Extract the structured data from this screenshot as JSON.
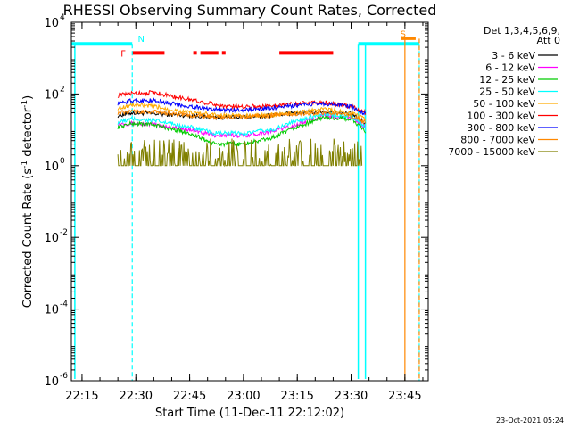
{
  "chart_data": {
    "type": "line",
    "title": "RHESSI Observing Summary Count Rates, Corrected",
    "xlabel": "Start Time (11-Dec-11 22:12:02)",
    "ylabel": "Corrected Count Rate (s",
    "ylabel_sup": "-1",
    "ylabel_mid": " detector",
    "ylabel_end": ")",
    "y_scale": "log",
    "ylim": [
      1e-06,
      10000.0
    ],
    "xlim": [
      "22:12:02",
      "23:51:30"
    ],
    "x_ticks": [
      {
        "time": "22:15",
        "label": "22:15"
      },
      {
        "time": "22:30",
        "label": "22:30"
      },
      {
        "time": "22:45",
        "label": "22:45"
      },
      {
        "time": "23:00",
        "label": "23:00"
      },
      {
        "time": "23:15",
        "label": "23:15"
      },
      {
        "time": "23:30",
        "label": "23:30"
      },
      {
        "time": "23:45",
        "label": "23:45"
      }
    ],
    "y_ticks": [
      {
        "value": 10000.0,
        "base": "10",
        "exp": "4"
      },
      {
        "value": 100.0,
        "base": "10",
        "exp": "2"
      },
      {
        "value": 1.0,
        "base": "10",
        "exp": "0"
      },
      {
        "value": 0.01,
        "base": "10",
        "exp": "-2"
      },
      {
        "value": 0.0001,
        "base": "10",
        "exp": "-4"
      },
      {
        "value": 1e-06,
        "base": "10",
        "exp": "-6"
      }
    ],
    "legend_header": [
      "Det 1,3,4,5,6,9,",
      "Att 0"
    ],
    "legend_position": "right, outside plot",
    "series": [
      {
        "name": "3 - 6 keV",
        "color": "#000000",
        "x": [
          "22:25",
          "22:29",
          "22:35",
          "22:45",
          "22:55",
          "23:05",
          "23:15",
          "23:22",
          "23:30",
          "23:34"
        ],
        "y": [
          25,
          30,
          28,
          25,
          22,
          24,
          30,
          32,
          28,
          15
        ]
      },
      {
        "name": "6 - 12 keV",
        "color": "#ff00ff",
        "x": [
          "22:25",
          "22:29",
          "22:35",
          "22:45",
          "22:52",
          "23:00",
          "23:08",
          "23:15",
          "23:22",
          "23:30",
          "23:34"
        ],
        "y": [
          15,
          15,
          14,
          10,
          7,
          7,
          9,
          14,
          25,
          22,
          12
        ]
      },
      {
        "name": "12 - 25 keV",
        "color": "#00cc00",
        "x": [
          "22:25",
          "22:29",
          "22:35",
          "22:45",
          "22:52",
          "23:00",
          "23:08",
          "23:15",
          "23:22",
          "23:30",
          "23:34"
        ],
        "y": [
          12,
          15,
          14,
          8,
          4,
          4,
          6,
          12,
          22,
          20,
          9
        ]
      },
      {
        "name": "25 - 50 keV",
        "color": "#00ffff",
        "x": [
          "22:25",
          "22:29",
          "22:35",
          "22:45",
          "22:52",
          "23:00",
          "23:08",
          "23:15",
          "23:22",
          "23:30",
          "23:34"
        ],
        "y": [
          16,
          20,
          18,
          12,
          8,
          8,
          10,
          18,
          28,
          24,
          12
        ]
      },
      {
        "name": "50 - 100 keV",
        "color": "#ffaa00",
        "x": [
          "22:25",
          "22:29",
          "22:35",
          "22:45",
          "22:55",
          "23:05",
          "23:15",
          "23:22",
          "23:30",
          "23:34"
        ],
        "y": [
          40,
          50,
          45,
          30,
          25,
          25,
          30,
          38,
          30,
          20
        ]
      },
      {
        "name": "100 - 300 keV",
        "color": "#ff0000",
        "x": [
          "22:25",
          "22:29",
          "22:35",
          "22:45",
          "22:55",
          "23:05",
          "23:15",
          "23:22",
          "23:30",
          "23:34"
        ],
        "y": [
          90,
          105,
          110,
          70,
          45,
          45,
          55,
          60,
          45,
          30
        ]
      },
      {
        "name": "300 - 800 keV",
        "color": "#0000ff",
        "x": [
          "22:25",
          "22:29",
          "22:35",
          "22:45",
          "22:55",
          "23:05",
          "23:15",
          "23:22",
          "23:30",
          "23:34"
        ],
        "y": [
          55,
          65,
          65,
          45,
          35,
          38,
          48,
          55,
          45,
          28
        ]
      },
      {
        "name": "800 - 7000 keV",
        "color": "#ff8800",
        "x": [
          "22:25",
          "22:29",
          "22:35",
          "22:45",
          "22:55",
          "23:05",
          "23:15",
          "23:22",
          "23:30",
          "23:34"
        ],
        "y": [
          30,
          32,
          32,
          25,
          22,
          24,
          28,
          30,
          25,
          16
        ]
      },
      {
        "name": "7000 - 15000 keV",
        "color": "#808000",
        "x": [
          "22:25",
          "22:28",
          "22:35",
          "22:45",
          "22:55",
          "23:05",
          "23:15",
          "23:22",
          "23:30",
          "23:33"
        ],
        "y": [
          1,
          1,
          1,
          1,
          1,
          1,
          1,
          1,
          1,
          1
        ]
      }
    ],
    "flags": {
      "saa_level_value": 2500,
      "flare_level_value": 1400,
      "attenuator_level_value": 3500,
      "labels": [
        {
          "text": "N",
          "color": "#00ffff",
          "time": "22:30"
        },
        {
          "text": "F",
          "color": "#ff0000",
          "time": "22:27"
        },
        {
          "text": "S",
          "color": "#ff8800",
          "time": "23:43"
        }
      ],
      "cyan_bars": [
        [
          "22:12:02",
          "22:29"
        ],
        [
          "23:32",
          "23:49"
        ]
      ],
      "red_segments": [
        [
          "22:29",
          "22:38"
        ],
        [
          "22:46",
          "22:47"
        ],
        [
          "22:48",
          "22:53"
        ],
        [
          "22:54",
          "22:55"
        ],
        [
          "23:10",
          "23:25"
        ]
      ],
      "orange_segment": [
        "23:44",
        "23:48"
      ],
      "cyan_vlines_solid": [
        "22:13",
        "23:32",
        "23:34"
      ],
      "cyan_vlines_dashed": [
        "22:29",
        "23:49"
      ],
      "orange_vlines_solid": [
        "23:45"
      ],
      "orange_vlines_dashed": [
        "23:49"
      ]
    }
  },
  "timestamp": "23-Oct-2021 05:24"
}
